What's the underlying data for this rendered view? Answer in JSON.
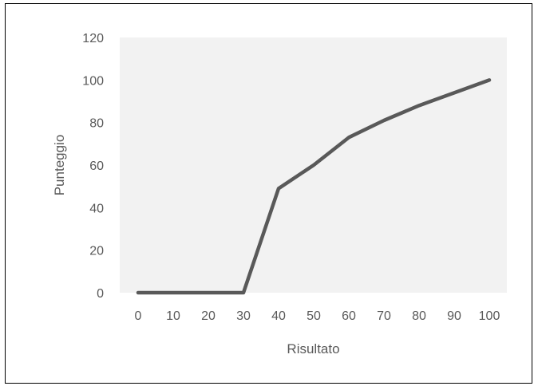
{
  "chart_data": {
    "type": "line",
    "title": "",
    "xlabel": "Risultato",
    "ylabel": "Punteggio",
    "categories": [
      "0",
      "10",
      "20",
      "30",
      "40",
      "50",
      "60",
      "70",
      "80",
      "90",
      "100"
    ],
    "series": [
      {
        "values": [
          0,
          0,
          0,
          0,
          49,
          60,
          73,
          81,
          88,
          94,
          100
        ]
      }
    ],
    "ylim": [
      0,
      120
    ],
    "yticks": [
      "0",
      "20",
      "40",
      "60",
      "80",
      "100",
      "120"
    ],
    "grid": false,
    "legend": "none",
    "colors": {
      "plot_background": "#f2f2f2",
      "line": "#595959",
      "text": "#595959"
    }
  }
}
